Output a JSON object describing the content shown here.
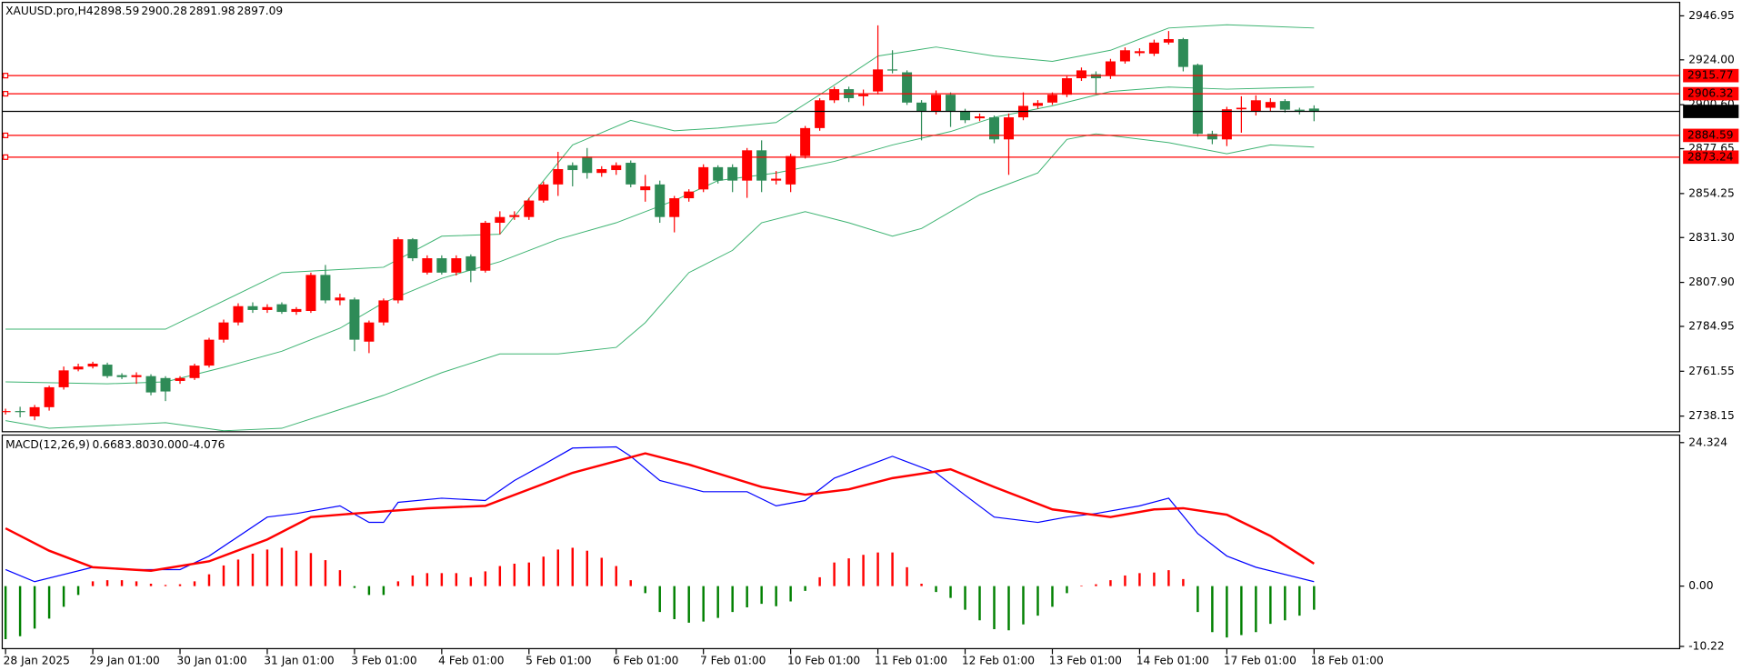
{
  "chart_data": [
    {
      "type": "candlestick",
      "title": "XAUUSD.pro,H4",
      "categories": [
        "28 Jan 2025",
        null,
        null,
        null,
        null,
        null,
        "29 Jan 01:00",
        null,
        null,
        null,
        null,
        null,
        "30 Jan 01:00",
        null,
        null,
        null,
        null,
        null,
        "31 Jan 01:00",
        null,
        null,
        null,
        null,
        null,
        "3 Feb 01:00",
        null,
        null,
        null,
        null,
        null,
        "4 Feb 01:00",
        null,
        null,
        null,
        null,
        null,
        "5 Feb 01:00",
        null,
        null,
        null,
        null,
        null,
        "6 Feb 01:00",
        null,
        null,
        null,
        null,
        null,
        "7 Feb 01:00",
        null,
        null,
        null,
        null,
        null,
        "10 Feb 01:00",
        null,
        null,
        null,
        null,
        null,
        "11 Feb 01:00",
        null,
        null,
        null,
        null,
        null,
        "12 Feb 01:00",
        null,
        null,
        null,
        null,
        null,
        "13 Feb 01:00",
        null,
        null,
        null,
        null,
        null,
        "14 Feb 01:00",
        null,
        null,
        null,
        null,
        null,
        "17 Feb 01:00",
        null,
        null,
        null,
        null,
        null,
        "18 Feb 01:00"
      ],
      "open": [
        2740.5,
        2740.8,
        2738,
        2742.8,
        2753.2,
        2762.5,
        2764,
        2765,
        2759.5,
        2758.5,
        2759,
        2758,
        2756.5,
        2758,
        2764.5,
        2778,
        2787,
        2795.5,
        2793.5,
        2796.5,
        2792.5,
        2793,
        2811.8,
        2798.5,
        2799,
        2777,
        2787,
        2798.5,
        2830.4,
        2813,
        2820.5,
        2813,
        2821.5,
        2814,
        2839,
        2842,
        2842,
        2850.6,
        2859,
        2869,
        2873.5,
        2865,
        2866.5,
        2870.3,
        2856,
        2859,
        2842,
        2851.8,
        2856.4,
        2868,
        2868,
        2861,
        2876.8,
        2861,
        2859,
        2873.8,
        2888.4,
        2902.9,
        2908.7,
        2905,
        2907.5,
        2919,
        2917.5,
        2901.7,
        2897,
        2905.8,
        2897,
        2893.5,
        2894,
        2882.5,
        2894,
        2900,
        2901.7,
        2905.8,
        2914.4,
        2916.5,
        2915.6,
        2923.2,
        2927.5,
        2927.2,
        2933,
        2934.8,
        2921.4,
        2885.4,
        2882.5,
        2898.2,
        2897,
        2899,
        2902.5,
        2898,
        2898.59
      ],
      "high": [
        2742,
        2743,
        2744,
        2754,
        2764,
        2765.5,
        2766.5,
        2766,
        2760.5,
        2761,
        2760,
        2759,
        2759,
        2765.5,
        2779,
        2788.5,
        2797,
        2797.5,
        2796.5,
        2797.5,
        2795,
        2813,
        2817,
        2802,
        2800,
        2788,
        2799.5,
        2831.5,
        2831,
        2822,
        2822,
        2822,
        2822.5,
        2840,
        2845,
        2845,
        2852,
        2860.5,
        2876,
        2870.5,
        2878,
        2868.5,
        2870.5,
        2871.5,
        2864,
        2861,
        2853,
        2856.5,
        2869.5,
        2869,
        2869.5,
        2878,
        2882,
        2866,
        2875,
        2889.5,
        2904,
        2910,
        2910,
        2908.5,
        2942,
        2929,
        2918.5,
        2903,
        2908,
        2907,
        2898.5,
        2896,
        2895,
        2896,
        2907,
        2903,
        2907,
        2915.5,
        2920,
        2918,
        2924.5,
        2930.5,
        2930,
        2934.5,
        2939,
        2935.5,
        2922,
        2887,
        2899.5,
        2905,
        2905.5,
        2904,
        2903.5,
        2899,
        2900.28
      ],
      "low": [
        2739,
        2737.5,
        2736,
        2741,
        2752,
        2761.5,
        2763,
        2758,
        2757.5,
        2755,
        2749,
        2746,
        2755,
        2757,
        2763.5,
        2776.5,
        2785.5,
        2792,
        2792,
        2791.5,
        2791,
        2792,
        2797,
        2796,
        2772,
        2771,
        2785.5,
        2797,
        2819,
        2812,
        2812,
        2811.5,
        2808,
        2813,
        2833,
        2840.5,
        2840.5,
        2849.5,
        2853,
        2858,
        2862,
        2863,
        2864,
        2857.5,
        2850,
        2839,
        2834,
        2850,
        2855,
        2859.5,
        2855,
        2852,
        2855,
        2859,
        2855,
        2872.5,
        2887,
        2901.5,
        2902,
        2900,
        2906,
        2917,
        2900.5,
        2882,
        2895.5,
        2889,
        2891,
        2892,
        2880.5,
        2864,
        2892.5,
        2898.5,
        2900.5,
        2904.5,
        2913,
        2906,
        2914,
        2922,
        2926,
        2926,
        2932,
        2918,
        2884,
        2880,
        2879,
        2886,
        2895,
        2897,
        2896.5,
        2895.5,
        2891.98
      ],
      "close": [
        2740.8,
        2740.3,
        2742.8,
        2753.2,
        2762,
        2764,
        2765.5,
        2759,
        2758.5,
        2759.5,
        2750.5,
        2751,
        2758,
        2764.5,
        2778,
        2787,
        2795.5,
        2793.5,
        2795,
        2792.5,
        2794,
        2811.8,
        2798.5,
        2800,
        2778,
        2787,
        2798.5,
        2830.4,
        2820.5,
        2820.5,
        2813,
        2820.5,
        2814,
        2839,
        2842,
        2843,
        2850.6,
        2859,
        2867,
        2866.5,
        2865,
        2867,
        2869,
        2859,
        2858,
        2842,
        2851.8,
        2855.3,
        2868,
        2861,
        2861,
        2876.8,
        2861,
        2862,
        2873.8,
        2888.4,
        2902.9,
        2908.7,
        2904,
        2906,
        2919,
        2918.5,
        2901.7,
        2897,
        2905.8,
        2897,
        2892.5,
        2894.5,
        2882.5,
        2894,
        2900,
        2901.5,
        2905.8,
        2914.4,
        2918.5,
        2914.4,
        2923.2,
        2929,
        2928.5,
        2933,
        2934.8,
        2920.3,
        2885.4,
        2882.5,
        2898.2,
        2899,
        2902.9,
        2902,
        2898,
        2897.5,
        2897.09
      ],
      "upper_band": {
        "x": [
          0,
          11,
          19,
          26,
          30,
          34,
          39,
          43,
          46,
          49,
          53,
          56,
          60,
          64,
          68,
          72,
          76,
          80,
          84,
          90
        ],
        "values": [
          2783.5,
          2783.5,
          2813,
          2815.8,
          2832,
          2833,
          2879.6,
          2892.4,
          2887,
          2888.4,
          2891.3,
          2905.8,
          2926,
          2930.7,
          2926,
          2923.2,
          2929,
          2940.6,
          2942.3,
          2940.6
        ]
      },
      "middle_band": {
        "x": [
          0,
          7,
          11,
          15,
          19,
          23,
          26,
          30,
          34,
          38,
          42,
          46,
          49,
          53,
          57,
          61,
          65,
          68,
          72,
          76,
          80,
          84,
          90
        ],
        "values": [
          2756,
          2755,
          2756,
          2763.6,
          2772,
          2784,
          2797.3,
          2810,
          2818.7,
          2830.4,
          2839,
          2850.6,
          2861,
          2865,
          2871,
          2879.6,
          2886.6,
          2894,
          2900,
          2907.5,
          2909.8,
          2908.7,
          2909.8
        ]
      },
      "lower_band": {
        "x": [
          0,
          3,
          11,
          15,
          19,
          23,
          26,
          30,
          34,
          38,
          42,
          44,
          47,
          50,
          52,
          55,
          58,
          61,
          63,
          67,
          71,
          73,
          75,
          80,
          84,
          87,
          90
        ],
        "values": [
          2735.8,
          2731.8,
          2734.7,
          2730.5,
          2731.8,
          2741.6,
          2749,
          2760.8,
          2770.6,
          2770.6,
          2774,
          2786.9,
          2813,
          2824.6,
          2839,
          2844.8,
          2839,
          2832,
          2836,
          2853.6,
          2865,
          2882.5,
          2885.4,
          2880.8,
          2875,
          2879.6,
          2878.5
        ]
      },
      "levels": [
        2915.77,
        2906.32,
        2884.59,
        2873.24
      ],
      "ylim": [
        2730,
        2954
      ],
      "yticks": [
        2946.95,
        {
          "value": 2924,
          "label": "2924.00"
        },
        {
          "value": 2900.6,
          "label": "2900.60"
        },
        2877.65,
        2854.25,
        {
          "value": 2831.3,
          "label": "2831.30"
        },
        {
          "value": 2807.9,
          "label": "2807.90"
        },
        2784.95,
        2761.55,
        2738.15
      ],
      "up_color": "#ff0000",
      "down_color": "#2e8b57",
      "band_color": "#3cb371",
      "level_color": "#ff0000",
      "current_color": "#000000",
      "grid": false
    },
    {
      "type": "macd",
      "title": "MACD(12,26,9)",
      "header_values": [
        0.668,
        3.803,
        {
          "value": 0,
          "label": "0.000"
        },
        -4.076
      ],
      "histogram": [
        -9,
        -8.5,
        -7.2,
        -5.5,
        -3.5,
        -1.5,
        0.8,
        1,
        1,
        0.8,
        0.4,
        0.2,
        0.3,
        0.8,
        2,
        3.5,
        4.5,
        5.5,
        6.2,
        6.5,
        6,
        5.6,
        4.4,
        2.7,
        -0.3,
        -1.5,
        -1.5,
        0.8,
        1.8,
        2.2,
        2.2,
        2.2,
        1.5,
        2.5,
        3.4,
        3.8,
        4,
        5,
        6.2,
        6.5,
        6,
        4.8,
        3.4,
        1,
        -1.2,
        -4.4,
        -5.6,
        -6.2,
        -6,
        -5.4,
        -4.4,
        -3.6,
        -3,
        -3.4,
        -2.6,
        -0.8,
        1.5,
        4,
        4.7,
        5.3,
        5.7,
        5.7,
        3.2,
        0.4,
        -1,
        -2,
        -4,
        -5.8,
        -7.3,
        -7.5,
        -6.5,
        -5,
        -3.5,
        -1.2,
        0.1,
        0.3,
        1,
        1.8,
        2.2,
        2.3,
        2.7,
        1.2,
        -4.4,
        -7.8,
        -8.7,
        -8.3,
        -7.8,
        -6.4,
        -5.8,
        -5,
        -4
      ],
      "main_line": {
        "x": [
          0,
          2,
          6,
          9,
          12,
          14,
          18,
          20,
          23,
          25,
          26,
          27,
          30,
          33,
          35,
          37,
          39,
          42,
          43,
          45,
          48,
          51,
          53,
          55,
          57,
          61,
          64,
          66,
          68,
          71,
          73,
          75,
          78,
          80,
          82,
          84,
          86,
          90
        ],
        "values": [
          2.8,
          0.75,
          3.2,
          2.8,
          2.8,
          5.1,
          11.7,
          12.3,
          13.6,
          10.8,
          10.8,
          14.2,
          14.9,
          14.5,
          17.9,
          20.6,
          23.4,
          23.6,
          22,
          17.9,
          16,
          16,
          13.6,
          14.5,
          18.3,
          22,
          19.2,
          15.4,
          11.7,
          10.8,
          11.7,
          12.3,
          13.6,
          14.9,
          8.9,
          5.1,
          3.2,
          0.75
        ]
      },
      "signal_line": {
        "x": [
          0,
          3,
          6,
          10,
          14,
          18,
          21,
          24,
          29,
          33,
          36,
          39,
          44,
          47,
          52,
          55,
          58,
          61,
          65,
          68,
          72,
          76,
          79,
          81,
          84,
          87,
          90
        ],
        "values": [
          9.8,
          6,
          3.2,
          2.6,
          4.2,
          7.9,
          11.7,
          12.3,
          13.2,
          13.6,
          16.4,
          19.2,
          22.5,
          20.6,
          16.8,
          15.5,
          16.4,
          18.3,
          19.8,
          16.8,
          13,
          11.7,
          13,
          13.2,
          12.1,
          8.5,
          3.8
        ]
      },
      "ylim": [
        -10.6,
        25.6
      ],
      "yticks": [
        24.324,
        {
          "value": 0,
          "label": "0.00"
        },
        -10.22
      ],
      "main_color": "#0000ff",
      "signal_color": "#ff0000",
      "hist_up_color": "#ff0000",
      "hist_down_color": "#008000"
    }
  ]
}
